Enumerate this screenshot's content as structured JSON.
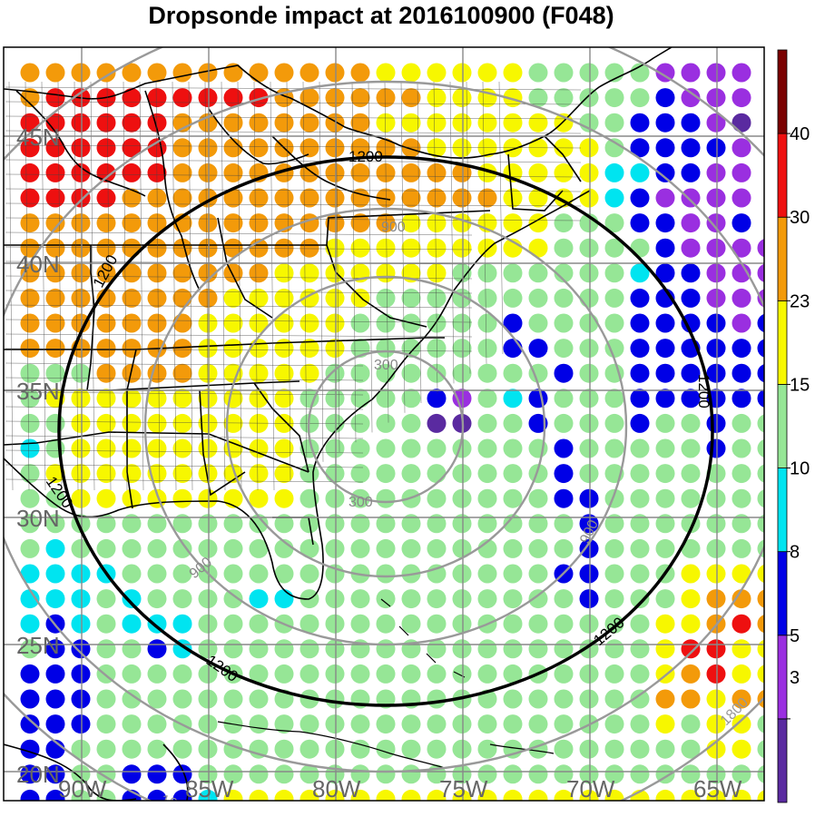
{
  "title": "Dropsonde impact at 2016100900 (F048)",
  "colorbar": {
    "bins": [
      {
        "range": "<3",
        "color": "#5a2aa0"
      },
      {
        "range": "3-5",
        "color": "#9a2fe0"
      },
      {
        "range": "5-8",
        "color": "#0000e6"
      },
      {
        "range": "8-10",
        "color": "#00e4f0"
      },
      {
        "range": "10-15",
        "color": "#96e696"
      },
      {
        "range": "15-23",
        "color": "#f7f700"
      },
      {
        "range": "23-30",
        "color": "#f39a0a"
      },
      {
        "range": "30-40",
        "color": "#ee1010"
      },
      {
        "range": ">40",
        "color": "#7a0000"
      }
    ],
    "tick_labels": [
      "3",
      "5",
      "8",
      "10",
      "15",
      "23",
      "30",
      "40"
    ]
  },
  "grid": {
    "lon_labels": [
      "90W",
      "85W",
      "80W",
      "75W",
      "70W",
      "65W"
    ],
    "lat_labels": [
      "45N",
      "40N",
      "35N",
      "30N",
      "25N",
      "20N"
    ]
  },
  "range_rings": [
    {
      "label": "300"
    },
    {
      "label": "900"
    },
    {
      "label": "1200",
      "emphasis": true
    },
    {
      "label": "1800"
    }
  ],
  "dot_rows": [
    "OOOOOOOOOOOOOOYYYYYYGGGGGPPPP",
    "ORRRRRRRRROOOOOOYYYYGGGGGBPPP",
    "RRRRRROOOOOOOOYYYYYYYYGGBBBPD",
    "RRRRRROOOOOOOOOOYYYYYYYGBBBBP",
    "RRRRRROOOOOOOOOOOOYYYYYCCBBPP",
    "RRRROOOOOOOOOOOOOOOYYYYCBPPPP",
    "OOOOOOOOOOOOOOOYYYYYYGGGBBPPB",
    "OOOOOOOOOOOOYYYYYYYYYGGGGBPPPP",
    "OOOOOOOOOOYYYYYYYGGGGGGGCBBPPP",
    "OOOOOOOOYYYYYYGGGGGGGGGGBBBPPP",
    "OOOOOOOYYYYYYGGGGGGBGGGGBBBBPB",
    "OOOOOOOYYYYYYGGGGGGBBGGGBBBBBB",
    "GGGOOOOYYYYYGGGGGGGGGBGGBBBBBB",
    "GYYYYYYYYYYGGGGGBPGCBGGGBBBBBB",
    "GGYYYYYYYYYGGGGGDDGGBGGGBGGBGG",
    "CGYYYYYYYYYGGGGGGGGGGBGGGGGBGG",
    "GYYYYYYYYYYGGGGGGGGGGBGGGGGGGG",
    "GGYYYYYYYYYGGGGGGGGGGBBGGGGGGG",
    "GGGGGGGGGGGGGGGGGGGGGGBGGGGGGG",
    "GCGGGGGGGGGGGGGGGGGGGGBGGGGGGG",
    "CCCCGGGGGGGGGGGGGGGGGBBGGGYYYY",
    "CCCGCGGGGCCGGGGGGGGGGGBGGGYOOO",
    "CBCGCCCGGGGGGGGGGGGGGGGGGYYORO",
    "GBBGGBCGGGGGGGGGGGGGGGGGGYRRYY",
    "BBBGGGGGGGGGGGGGGGGGGGGGGYORYY",
    "BBBGGGGGGGGGGGGGGGGGGGGGGOOYOO",
    "BBBGGGGGGGGGGGGGGGGGGGGGGYGYYG",
    "BBGGGGGGGGGGGGGGGGGGGGGGGGGYYG",
    "BBGGBBBGGGGGGGGGGGGGGGGGGGGGGG",
    "BBGGBBBCYYYYYYYYYYYYYYYYYYYYYY"
  ],
  "dot_color_key": {
    "D": "#5a2aa0",
    "P": "#9a2fe0",
    "B": "#0000e6",
    "C": "#00e4f0",
    "G": "#96e696",
    "Y": "#f7f700",
    "O": "#f39a0a",
    "R": "#ee1010"
  }
}
